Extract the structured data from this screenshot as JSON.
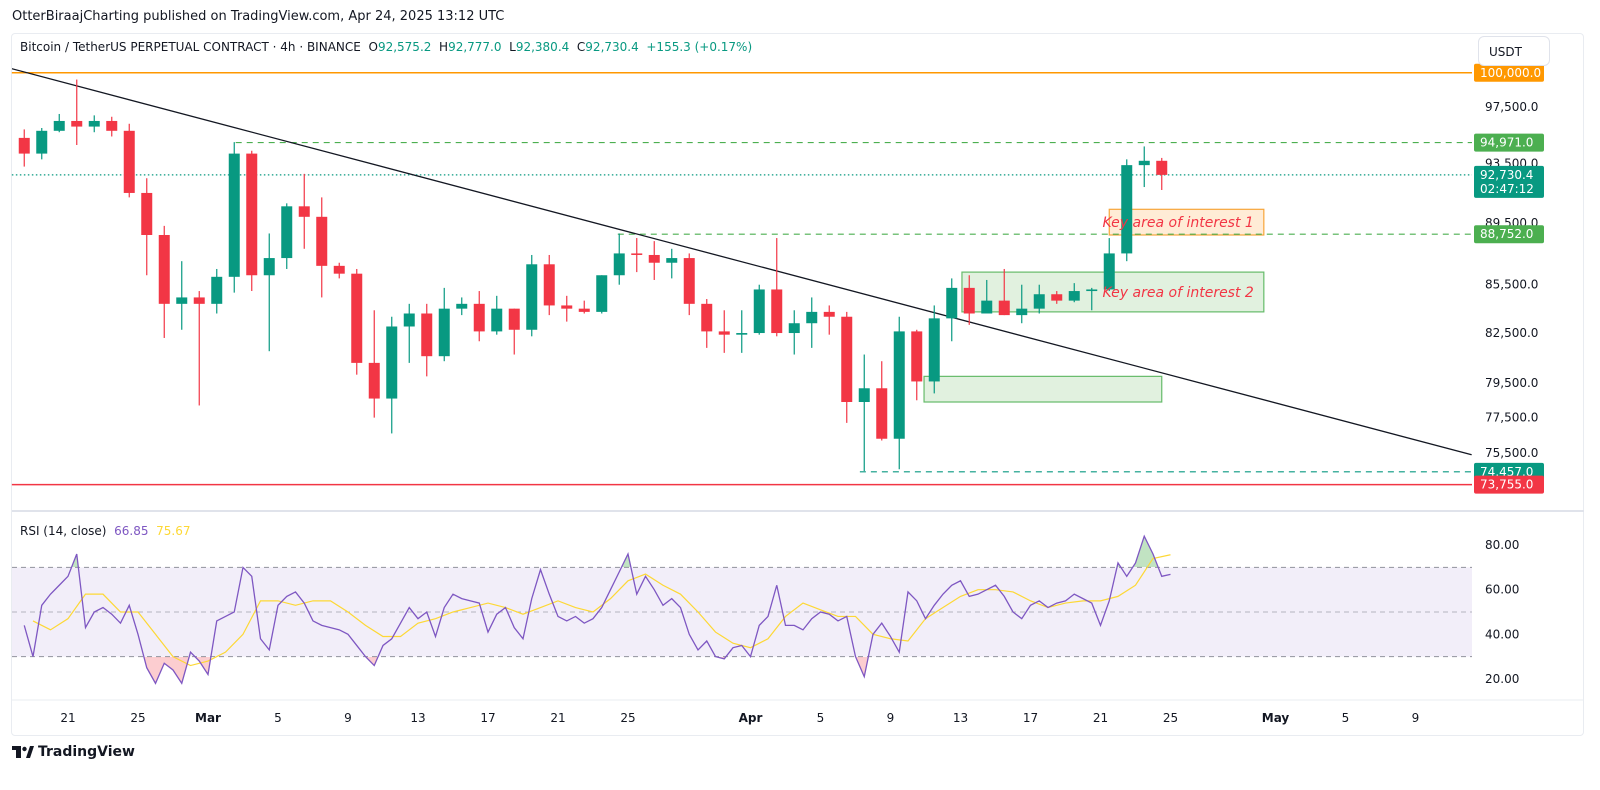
{
  "publisher": "OtterBiraajCharting published on TradingView.com, Apr 24, 2025 13:12 UTC",
  "legend": {
    "symbol": "Bitcoin / TetherUS PERPETUAL CONTRACT · 4h · BINANCE",
    "o_label": "O",
    "o": "92,575.2",
    "h_label": "H",
    "h": "92,777.0",
    "l_label": "L",
    "l": "92,380.4",
    "c_label": "C",
    "c": "92,730.4",
    "change": "+155.3 (+0.17%)"
  },
  "unit_button": "USDT",
  "rsi_legend": {
    "label": "RSI (14, close)",
    "rsi": "66.85",
    "ma": "75.67"
  },
  "logo": "TradingView",
  "colors": {
    "up": "#089981",
    "down": "#f23645",
    "rsi": "#7e57c2",
    "rsi_ma": "#fdd835",
    "resistance": "#ff9800",
    "level": "#4caf50",
    "support": "#f23645",
    "zone1": "#f7a53a",
    "annotation": "#f23645"
  },
  "chart_data": [
    {
      "type": "candlestick",
      "title": "Bitcoin / TetherUS PERPETUAL CONTRACT · 4h · BINANCE",
      "price_scale": "log",
      "ylim": [
        73500,
        100500
      ],
      "xlim": [
        "2025-02-17",
        "2025-05-12"
      ],
      "start_date": "2025-02-18",
      "ohlc_daily": [
        [
          95300,
          95900,
          93300,
          94200
        ],
        [
          94200,
          96000,
          93800,
          95800
        ],
        [
          95800,
          97000,
          95700,
          96500
        ],
        [
          96500,
          99500,
          94800,
          96100
        ],
        [
          96100,
          96900,
          95700,
          96500
        ],
        [
          96500,
          96800,
          95400,
          95800
        ],
        [
          95800,
          96300,
          91200,
          91500
        ],
        [
          91500,
          92500,
          86100,
          88700
        ],
        [
          88700,
          89300,
          82200,
          84300
        ],
        [
          84300,
          87000,
          82700,
          84700
        ],
        [
          84700,
          85100,
          78200,
          84300
        ],
        [
          84300,
          86500,
          83700,
          86000
        ],
        [
          86000,
          95000,
          85000,
          94200
        ],
        [
          94200,
          94400,
          85100,
          86100
        ],
        [
          86100,
          88800,
          81400,
          87200
        ],
        [
          87200,
          90800,
          86500,
          90600
        ],
        [
          90600,
          92800,
          87800,
          89900
        ],
        [
          89900,
          91200,
          84700,
          86700
        ],
        [
          86700,
          86900,
          85900,
          86200
        ],
        [
          86200,
          86500,
          80000,
          80700
        ],
        [
          80700,
          83900,
          77500,
          78600
        ],
        [
          78600,
          83500,
          76600,
          82900
        ],
        [
          82900,
          84300,
          80700,
          83700
        ],
        [
          83700,
          84300,
          79900,
          81100
        ],
        [
          81100,
          85300,
          80800,
          84000
        ],
        [
          84000,
          84700,
          83600,
          84300
        ],
        [
          84300,
          85100,
          82000,
          82600
        ],
        [
          82600,
          84800,
          82400,
          84000
        ],
        [
          84000,
          84000,
          81200,
          82700
        ],
        [
          82700,
          87400,
          82300,
          86800
        ],
        [
          86800,
          87400,
          83600,
          84200
        ],
        [
          84200,
          84800,
          83200,
          84000
        ],
        [
          84000,
          84500,
          83700,
          83800
        ],
        [
          83800,
          86100,
          83700,
          86100
        ],
        [
          86100,
          88800,
          85500,
          87500
        ],
        [
          87500,
          88500,
          86300,
          87400
        ],
        [
          87400,
          88300,
          85800,
          86900
        ],
        [
          86900,
          87800,
          85900,
          87200
        ],
        [
          87200,
          87500,
          83600,
          84300
        ],
        [
          84300,
          84600,
          81600,
          82600
        ],
        [
          82600,
          83900,
          81300,
          82400
        ],
        [
          82400,
          83900,
          81300,
          82500
        ],
        [
          82500,
          85500,
          82400,
          85200
        ],
        [
          85200,
          88500,
          82300,
          82500
        ],
        [
          82500,
          83900,
          81200,
          83100
        ],
        [
          83100,
          84700,
          81600,
          83800
        ],
        [
          83800,
          84200,
          82400,
          83500
        ],
        [
          83500,
          83800,
          77200,
          78400
        ],
        [
          78400,
          81200,
          74500,
          79200
        ],
        [
          79200,
          80800,
          76200,
          76300
        ],
        [
          76300,
          83500,
          74600,
          82600
        ],
        [
          82600,
          82700,
          78500,
          79600
        ],
        [
          79600,
          84200,
          78900,
          83400
        ],
        [
          83400,
          85900,
          82000,
          85300
        ],
        [
          85300,
          86100,
          83000,
          83700
        ],
        [
          83700,
          85800,
          83700,
          84500
        ],
        [
          84500,
          86500,
          83600,
          83600
        ],
        [
          83600,
          85500,
          83100,
          84000
        ],
        [
          84000,
          85500,
          83700,
          84900
        ],
        [
          84900,
          85100,
          84300,
          84500
        ],
        [
          84500,
          85600,
          84400,
          85100
        ],
        [
          85100,
          85300,
          83900,
          85200
        ],
        [
          85200,
          88500,
          85100,
          87500
        ],
        [
          87500,
          93800,
          87000,
          93400
        ],
        [
          93400,
          94700,
          91900,
          93700
        ],
        [
          93700,
          93900,
          91700,
          92730.4
        ]
      ],
      "price_ticks": [
        {
          "value": 97500,
          "label": "97,500.0"
        },
        {
          "value": 93500,
          "label": "93,500.0"
        },
        {
          "value": 89500,
          "label": "89,500.0"
        },
        {
          "value": 85500,
          "label": "85,500.0"
        },
        {
          "value": 82500,
          "label": "82,500.0"
        },
        {
          "value": 79500,
          "label": "79,500.0"
        },
        {
          "value": 77500,
          "label": "77,500.0"
        },
        {
          "value": 75500,
          "label": "75,500.0"
        }
      ],
      "levels": [
        {
          "name": "resistance-100000",
          "value": 100000,
          "label": "100,000.0",
          "style": "solid",
          "color": "#ff9800",
          "from": "2025-02-17T19:00"
        },
        {
          "name": "level-94971",
          "value": 94971,
          "label": "94,971.0",
          "style": "dashed",
          "color": "#4caf50",
          "from": "2025-03-02T14:00"
        },
        {
          "name": "last-price",
          "value": 92730.4,
          "label": "92,730.4",
          "countdown": "02:47:12",
          "style": "dotted",
          "color": "#089981",
          "from": "2025-02-17T19:00"
        },
        {
          "name": "level-88752",
          "value": 88752,
          "label": "88,752.0",
          "style": "dashed",
          "color": "#4caf50",
          "from": "2025-03-24T10:00"
        },
        {
          "name": "level-74457",
          "value": 74457,
          "label": "74,457.0",
          "style": "dashed",
          "color": "#089981",
          "from": "2025-04-07T06:00"
        },
        {
          "name": "support-73755",
          "value": 73755,
          "label": "73,755.0",
          "style": "solid",
          "color": "#f23645",
          "from": "2025-02-17T19:00"
        }
      ],
      "trendline": {
        "from": {
          "date": "2025-02-17T19:00",
          "price": 100300
        },
        "to": {
          "date": "2025-05-12T05:00",
          "price": 75400
        }
      },
      "zones": [
        {
          "name": "key-area-1",
          "label": "Key area of interest 1",
          "from": "2025-04-21T12:00",
          "to": "2025-04-30T08:00",
          "top": 90400,
          "bottom": 88700,
          "border": "#f7a53a",
          "fill": "#ffecd6"
        },
        {
          "name": "key-area-2",
          "label": "Key area of interest 2",
          "from": "2025-04-13T02:00",
          "to": "2025-04-30T08:00",
          "top": 86300,
          "bottom": 83800,
          "border": "#66bb6a",
          "fill": "#e1f1df"
        },
        {
          "name": "demand-zone",
          "label": "",
          "from": "2025-04-10T22:00",
          "to": "2025-04-24T12:00",
          "top": 79900,
          "bottom": 78400,
          "border": "#66bb6a",
          "fill": "#e1f1df"
        }
      ],
      "x_ticks": [
        {
          "date": "2025-02-21",
          "label": "21"
        },
        {
          "date": "2025-02-25",
          "label": "25"
        },
        {
          "date": "2025-03-01",
          "label": "Mar",
          "bold": true
        },
        {
          "date": "2025-03-05",
          "label": "5"
        },
        {
          "date": "2025-03-09",
          "label": "9"
        },
        {
          "date": "2025-03-13",
          "label": "13"
        },
        {
          "date": "2025-03-17",
          "label": "17"
        },
        {
          "date": "2025-03-21",
          "label": "21"
        },
        {
          "date": "2025-03-25",
          "label": "25"
        },
        {
          "date": "2025-04-01",
          "label": "Apr",
          "bold": true
        },
        {
          "date": "2025-04-05",
          "label": "5"
        },
        {
          "date": "2025-04-09",
          "label": "9"
        },
        {
          "date": "2025-04-13",
          "label": "13"
        },
        {
          "date": "2025-04-17",
          "label": "17"
        },
        {
          "date": "2025-04-21",
          "label": "21"
        },
        {
          "date": "2025-04-25",
          "label": "25"
        },
        {
          "date": "2025-05-01",
          "label": "May",
          "bold": true
        },
        {
          "date": "2025-05-05",
          "label": "5"
        },
        {
          "date": "2025-05-09",
          "label": "9"
        }
      ]
    },
    {
      "type": "line",
      "title": "RSI (14, close)",
      "ylim": [
        15,
        88
      ],
      "bands": {
        "upper": 70,
        "middle": 50,
        "lower": 30
      },
      "y_ticks": [
        {
          "value": 80,
          "label": "80.00"
        },
        {
          "value": 60,
          "label": "60.00"
        },
        {
          "value": 40,
          "label": "40.00"
        },
        {
          "value": 20,
          "label": "20.00"
        }
      ],
      "start_date": "2025-02-18",
      "rsi_12h": [
        44,
        30,
        53,
        58,
        62,
        66,
        76,
        43,
        50,
        52,
        49,
        45,
        53,
        40,
        25,
        18,
        27,
        24,
        18,
        32,
        28,
        22,
        46,
        48,
        50,
        70,
        66,
        38,
        33,
        53,
        57,
        59,
        54,
        46,
        44,
        43,
        42,
        40,
        35,
        30,
        26,
        35,
        38,
        45,
        52,
        47,
        50,
        39,
        52,
        58,
        56,
        55,
        54,
        41,
        49,
        52,
        43,
        38,
        56,
        69,
        58,
        48,
        46,
        48,
        45,
        47,
        52,
        60,
        68,
        76,
        58,
        66,
        60,
        53,
        56,
        52,
        40,
        33,
        37,
        30,
        29,
        34,
        35,
        30,
        44,
        48,
        62,
        44,
        44,
        42,
        47,
        50,
        49,
        46,
        48,
        30,
        21,
        40,
        45,
        39,
        32,
        59,
        55,
        47,
        53,
        58,
        62,
        64,
        57,
        58,
        60,
        62,
        57,
        50,
        47,
        53,
        55,
        52,
        54,
        55,
        58,
        56,
        54,
        44,
        55,
        72,
        66,
        72,
        84,
        76,
        66,
        66.85
      ],
      "ma_daily": [
        46,
        42,
        47,
        58,
        58,
        50,
        50,
        40,
        30,
        26,
        28,
        32,
        40,
        55,
        55,
        53,
        55,
        55,
        50,
        44,
        39,
        39,
        45,
        47,
        50,
        52,
        54,
        52,
        49,
        52,
        55,
        52,
        50,
        56,
        64,
        67,
        62,
        58,
        50,
        41,
        36,
        34,
        38,
        48,
        54,
        51,
        48,
        48,
        40,
        38,
        37,
        47,
        52,
        57,
        60,
        60,
        59,
        55,
        52,
        54,
        55,
        55,
        57,
        62,
        74,
        75.67
      ]
    }
  ]
}
